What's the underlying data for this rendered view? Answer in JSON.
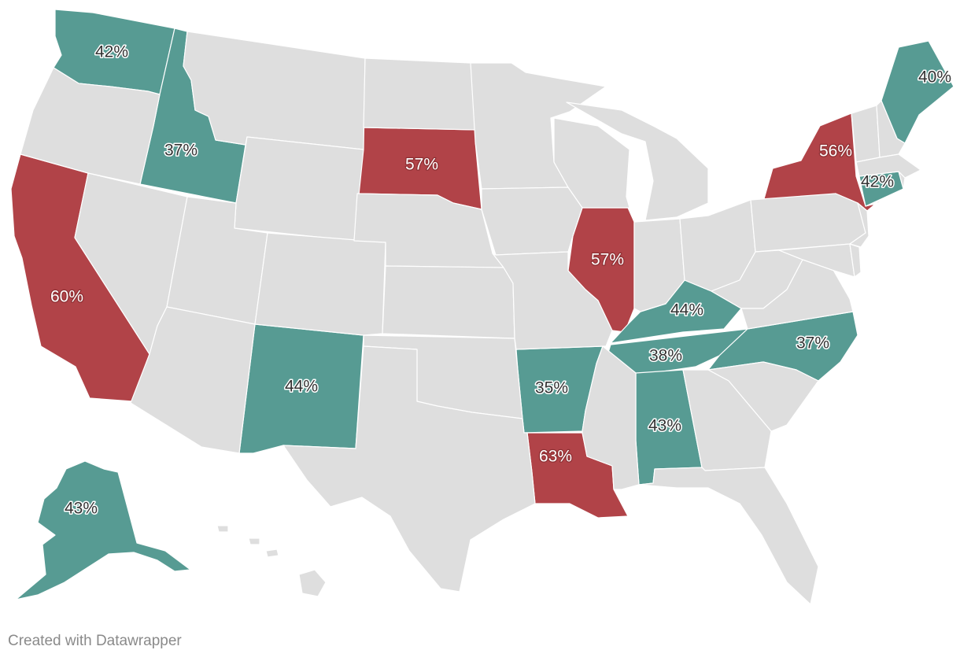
{
  "colors": {
    "none": "#dedede",
    "low": "#579b93",
    "high": "#b14348",
    "border": "#ffffff"
  },
  "states": [
    {
      "id": "WA",
      "value": "42%",
      "group": "low"
    },
    {
      "id": "ID",
      "value": "37%",
      "group": "low"
    },
    {
      "id": "CA",
      "value": "60%",
      "group": "high"
    },
    {
      "id": "SD",
      "value": "57%",
      "group": "high"
    },
    {
      "id": "IL",
      "value": "57%",
      "group": "high"
    },
    {
      "id": "NY",
      "value": "56%",
      "group": "high"
    },
    {
      "id": "ME",
      "value": "40%",
      "group": "low"
    },
    {
      "id": "CT",
      "value": "42%",
      "group": "low"
    },
    {
      "id": "KY",
      "value": "44%",
      "group": "low"
    },
    {
      "id": "TN",
      "value": "38%",
      "group": "low"
    },
    {
      "id": "NC",
      "value": "37%",
      "group": "low"
    },
    {
      "id": "NM",
      "value": "44%",
      "group": "low"
    },
    {
      "id": "AR",
      "value": "35%",
      "group": "low"
    },
    {
      "id": "AL",
      "value": "43%",
      "group": "low"
    },
    {
      "id": "LA",
      "value": "63%",
      "group": "high"
    },
    {
      "id": "AK",
      "value": "43%",
      "group": "low"
    }
  ],
  "credit": "Created with Datawrapper"
}
